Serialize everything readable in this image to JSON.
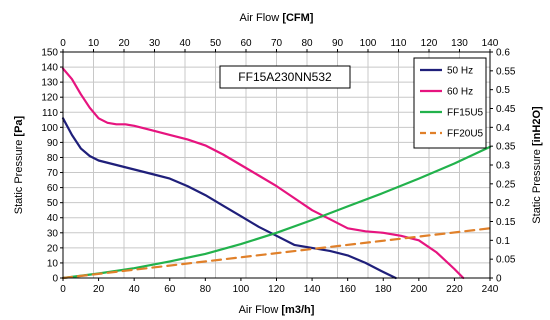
{
  "chart_data": {
    "type": "line",
    "title": "",
    "annotation": "FF15A230NN532",
    "x_bottom": {
      "label": "Air Flow",
      "unit": "[m3/h]",
      "range": [
        0,
        240
      ],
      "ticks": [
        0,
        20,
        40,
        60,
        80,
        100,
        120,
        140,
        160,
        180,
        200,
        220,
        240
      ]
    },
    "x_top": {
      "label": "Air Flow",
      "unit": "[CFM]",
      "range": [
        0,
        140
      ],
      "ticks": [
        0,
        10,
        20,
        30,
        40,
        50,
        60,
        70,
        80,
        90,
        100,
        110,
        120,
        130,
        140
      ]
    },
    "y_left": {
      "label": "Static Pressure",
      "unit": "[Pa]",
      "range": [
        0,
        150
      ],
      "ticks": [
        0,
        10,
        20,
        30,
        40,
        50,
        60,
        70,
        80,
        90,
        100,
        110,
        120,
        130,
        140,
        150
      ]
    },
    "y_right": {
      "label": "Static Pressure",
      "unit": "[inH2O]",
      "range": [
        0,
        0.6
      ],
      "ticks": [
        "0",
        "0.05",
        "0.1",
        "0.15",
        "0.2",
        "0.25",
        "0.3",
        "0.35",
        "0.4",
        "0.45",
        "0.5",
        "0.55",
        "0.6"
      ]
    },
    "grid": true,
    "legend_position": "top-right",
    "series": [
      {
        "name": "50 Hz",
        "color": "#1f1f7a",
        "dash": "solid",
        "points": [
          [
            0,
            106
          ],
          [
            5,
            95
          ],
          [
            10,
            86
          ],
          [
            15,
            81
          ],
          [
            20,
            78
          ],
          [
            30,
            75
          ],
          [
            40,
            72
          ],
          [
            50,
            69
          ],
          [
            60,
            66
          ],
          [
            70,
            61
          ],
          [
            80,
            55
          ],
          [
            90,
            48
          ],
          [
            100,
            41
          ],
          [
            110,
            34
          ],
          [
            120,
            28
          ],
          [
            130,
            22
          ],
          [
            140,
            20
          ],
          [
            150,
            18
          ],
          [
            160,
            15
          ],
          [
            170,
            10
          ],
          [
            180,
            4
          ],
          [
            187,
            0
          ]
        ]
      },
      {
        "name": "60 Hz",
        "color": "#e6147f",
        "dash": "solid",
        "points": [
          [
            0,
            139
          ],
          [
            5,
            132
          ],
          [
            10,
            122
          ],
          [
            15,
            113
          ],
          [
            20,
            106
          ],
          [
            25,
            103
          ],
          [
            30,
            102
          ],
          [
            35,
            102
          ],
          [
            40,
            101
          ],
          [
            50,
            98
          ],
          [
            60,
            95
          ],
          [
            70,
            92
          ],
          [
            80,
            88
          ],
          [
            90,
            82
          ],
          [
            100,
            75
          ],
          [
            110,
            68
          ],
          [
            120,
            61
          ],
          [
            130,
            53
          ],
          [
            140,
            45
          ],
          [
            150,
            39
          ],
          [
            160,
            33
          ],
          [
            170,
            31
          ],
          [
            180,
            30
          ],
          [
            190,
            28
          ],
          [
            200,
            25
          ],
          [
            210,
            17
          ],
          [
            220,
            6
          ],
          [
            225,
            0
          ]
        ]
      },
      {
        "name": "FF15U5",
        "color": "#22b24c",
        "dash": "solid",
        "points": [
          [
            0,
            0
          ],
          [
            20,
            3
          ],
          [
            40,
            6.5
          ],
          [
            60,
            11
          ],
          [
            80,
            16
          ],
          [
            100,
            22.5
          ],
          [
            120,
            30
          ],
          [
            140,
            38.5
          ],
          [
            160,
            47.5
          ],
          [
            180,
            56.5
          ],
          [
            200,
            66
          ],
          [
            220,
            76
          ],
          [
            240,
            87
          ]
        ]
      },
      {
        "name": "FF20U5",
        "color": "#e0802a",
        "dash": "dashed",
        "points": [
          [
            0,
            0
          ],
          [
            240,
            33
          ]
        ]
      }
    ]
  }
}
